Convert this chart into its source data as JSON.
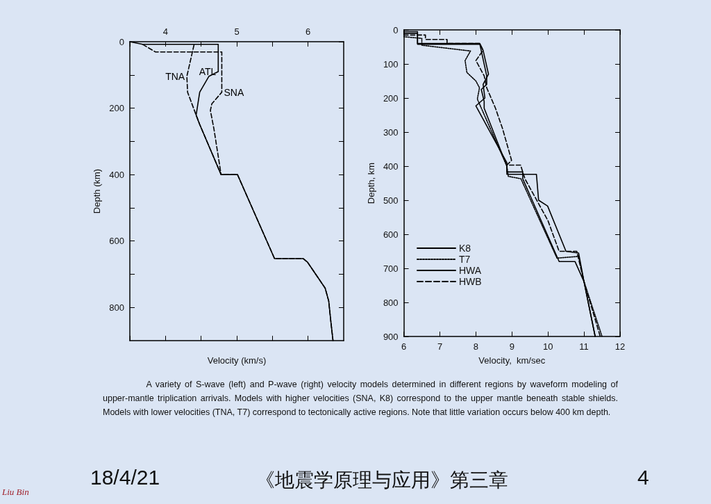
{
  "chart_data": [
    {
      "type": "line",
      "xlabel": "Velocity (km/s)",
      "ylabel": "Depth (km)",
      "xlim": [
        3.5,
        6.5
      ],
      "xticks": [
        {
          "value": 3.5,
          "label": null
        },
        4,
        {
          "value": 4.5,
          "label": null
        },
        5,
        {
          "value": 5.5,
          "label": null
        },
        6
      ],
      "ylim": [
        900,
        0
      ],
      "yticks": [
        0,
        {
          "value": 100,
          "label": null
        },
        200,
        {
          "value": 300,
          "label": null
        },
        400,
        {
          "value": 500,
          "label": null
        },
        600,
        {
          "value": 700,
          "label": null
        },
        800
      ],
      "grid": false,
      "legend": false,
      "marker": "none",
      "series": [
        {
          "name": "TNA",
          "color": "#000000",
          "line_style": "dashed",
          "x": [
            4.4,
            4.3,
            4.31,
            4.43,
            4.48,
            4.78,
            5.01,
            5.53,
            5.93,
            5.99,
            6.24,
            6.29,
            6.32,
            6.35
          ],
          "values": [
            10,
            104,
            152,
            221,
            249,
            400,
            400,
            653,
            653,
            663,
            742,
            781,
            843,
            900
          ]
        },
        {
          "name": "ATL",
          "color": "#000000",
          "line_style": "solid",
          "x": [
            3.5,
            3.68,
            4.74,
            4.74,
            4.61,
            4.48,
            4.43,
            4.48,
            4.78,
            5.01,
            5.53,
            5.93,
            5.99,
            6.24,
            6.29,
            6.32,
            6.35
          ],
          "values": [
            0,
            8,
            8,
            90,
            104,
            152,
            221,
            249,
            400,
            400,
            653,
            653,
            663,
            742,
            781,
            843,
            900
          ]
        },
        {
          "name": "SNA",
          "color": "#000000",
          "line_style": "dashed",
          "x": [
            3.68,
            3.86,
            4.79,
            4.79,
            4.65,
            4.63,
            4.68,
            4.78
          ],
          "values": [
            8,
            31,
            31,
            152,
            187,
            207,
            263,
            400
          ]
        }
      ]
    },
    {
      "type": "line",
      "xlabel": "Velocity,  km/sec",
      "ylabel": "Depth, km",
      "xlim": [
        6,
        12
      ],
      "xticks": [
        6,
        7,
        8,
        9,
        10,
        11,
        12
      ],
      "ylim": [
        900,
        0
      ],
      "yticks": [
        0,
        100,
        200,
        300,
        400,
        500,
        600,
        700,
        800,
        900
      ],
      "grid": false,
      "legend": "left",
      "marker": "none",
      "series": [
        {
          "name": "K8",
          "color": "#000000",
          "line_style": "solid",
          "x": [
            6.0,
            6.38,
            6.38,
            8.11,
            8.3,
            8.3,
            8.15,
            8.23,
            8.23,
            8.86,
            8.86,
            9.68,
            9.74,
            9.99,
            10.5,
            10.85,
            11.0,
            11.31
          ],
          "values": [
            10,
            10,
            42,
            42,
            135,
            160,
            175,
            210,
            230,
            400,
            424,
            424,
            500,
            517,
            650,
            655,
            739,
            900
          ]
        },
        {
          "name": "T7",
          "color": "#000000",
          "line_style": "dotted",
          "x": [
            6.0,
            6.5,
            6.5,
            7.85,
            7.7,
            7.75,
            8.0,
            8.1,
            8.04,
            8.86,
            8.9,
            9.25,
            10.25,
            10.85,
            11.0,
            11.5
          ],
          "values": [
            20,
            25,
            45,
            62,
            90,
            125,
            150,
            170,
            203,
            400,
            430,
            437,
            670,
            665,
            739,
            900
          ]
        },
        {
          "name": "HWA",
          "color": "#000000",
          "line_style": "solid",
          "x": [
            6.0,
            6.38,
            6.38,
            8.11,
            8.2,
            8.35,
            8.2,
            8.25,
            8.0,
            8.86,
            8.86,
            9.3,
            9.3,
            10.31,
            10.75,
            11.0,
            11.31
          ],
          "values": [
            5,
            5,
            40,
            40,
            60,
            130,
            160,
            200,
            223,
            390,
            417,
            417,
            437,
            680,
            680,
            739,
            900
          ]
        },
        {
          "name": "HWB",
          "color": "#000000",
          "line_style": "dashed",
          "x": [
            6.0,
            6.6,
            6.6,
            7.2,
            7.2,
            8.1,
            8.2,
            8.0,
            8.23,
            8.3,
            8.54,
            8.74,
            8.99,
            8.86,
            9.24,
            9.36,
            10.0,
            10.31,
            10.8,
            11.0,
            11.45
          ],
          "values": [
            15,
            15,
            28,
            28,
            40,
            40,
            60,
            90,
            135,
            170,
            229,
            290,
            383,
            397,
            397,
            437,
            560,
            650,
            650,
            739,
            900
          ]
        }
      ],
      "annotations": [
        "A variety of S-wave (left) and P-wave (right) velocity models determined in different regions by waveform modeling of upper-mantle triplication arrivals. Models with higher velocities (SNA, K8) correspond to the upper mantle beneath stable shields. Models with lower velocities (TNA, T7) correspond to tectonically active regions. Note that little variation occurs below 400 km depth.",
        "18/4/21",
        "《地震学原理与应用》第三章",
        "4",
        "Liu Bin"
      ]
    }
  ]
}
